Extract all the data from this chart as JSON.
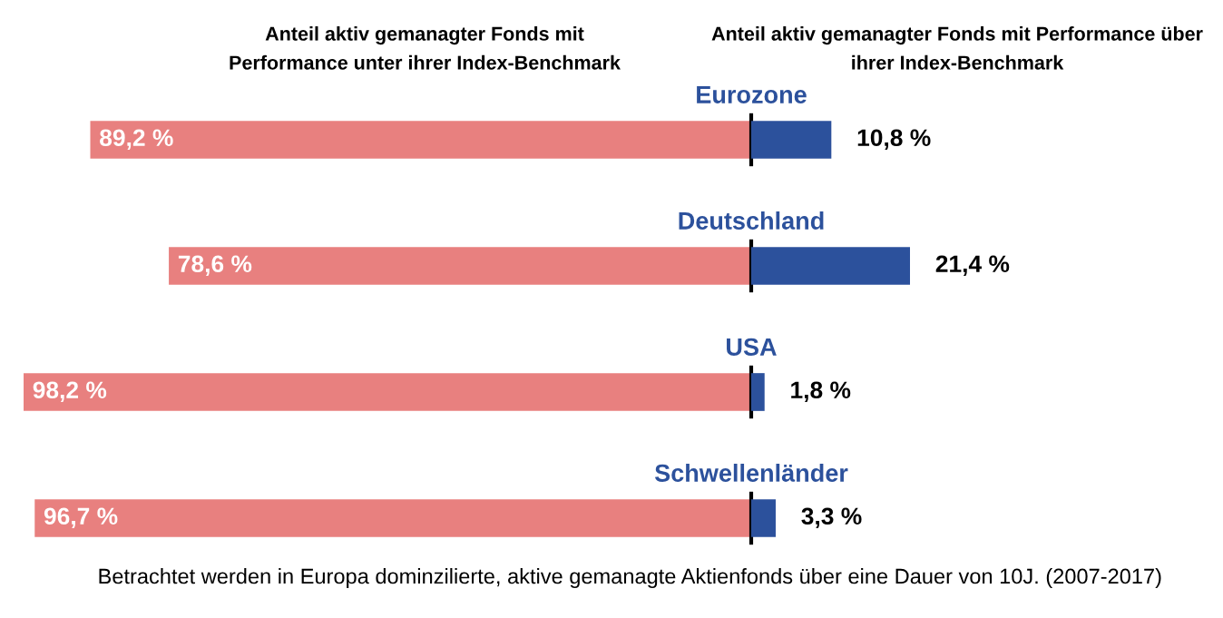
{
  "chart_data": [
    {
      "type": "bar",
      "orientation": "horizontal",
      "categories": [
        "Eurozone",
        "Deutschland",
        "USA",
        "Schwellenländer"
      ],
      "series": [
        {
          "color": "#e8807f",
          "values": [
            89.2,
            78.6,
            98.2,
            96.7
          ],
          "value_labels": [
            "89,2 %",
            "78,6 %",
            "98,2 %",
            "96,7 %"
          ]
        }
      ],
      "xlim": [
        98.2,
        0
      ],
      "tick_labels": "y",
      "ref_lines": [
        {
          "axis": "x",
          "value": 0,
          "color": "#000000"
        }
      ],
      "annotations": [
        "Anteil aktiv gemanagter Fonds mit Performance unter ihrer Index-Benchmark",
        "Betrachtet werden in Europa dominzilierte, aktive gemanagte Aktienfonds über eine Dauer von 10J. (2007-2017)"
      ]
    },
    {
      "type": "bar",
      "orientation": "horizontal",
      "categories": [
        null,
        null,
        null,
        null
      ],
      "series": [
        {
          "color": "#2c519c",
          "values": [
            10.8,
            21.4,
            1.8,
            3.3
          ],
          "value_labels": [
            "10,8 %",
            "21,4 %",
            "1,8 %",
            "3,3 %"
          ]
        }
      ],
      "xlim": [
        0,
        21.4
      ],
      "tick_labels": false,
      "annotations": [
        "Anteil aktiv gemanagter Fonds mit Performance über ihrer Index-Benchmark"
      ]
    }
  ]
}
